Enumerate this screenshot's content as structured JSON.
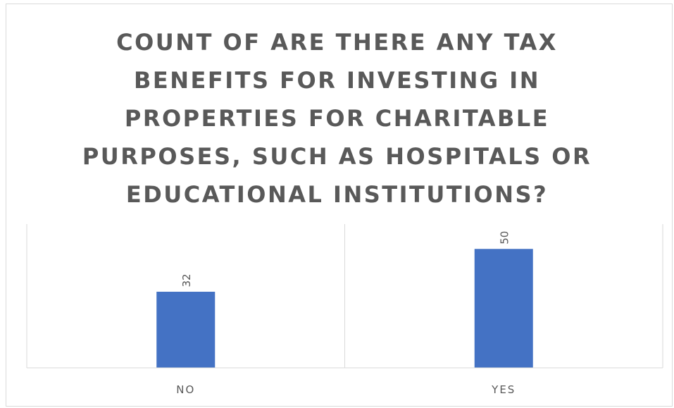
{
  "chart_data": {
    "type": "bar",
    "title": "COUNT OF ARE THERE ANY TAX BENEFITS FOR INVESTING IN PROPERTIES FOR CHARITABLE PURPOSES, SUCH AS HOSPITALS OR EDUCATIONAL INSTITUTIONS?",
    "categories": [
      "NO",
      "YES"
    ],
    "values": [
      32,
      50
    ],
    "ylim": [
      0,
      64
    ],
    "grid": false,
    "legend": "none",
    "xlabel": "",
    "ylabel": "",
    "colors": {
      "bar": "#4472c4",
      "axis": "#d9d9d9",
      "text": "#595959"
    }
  }
}
